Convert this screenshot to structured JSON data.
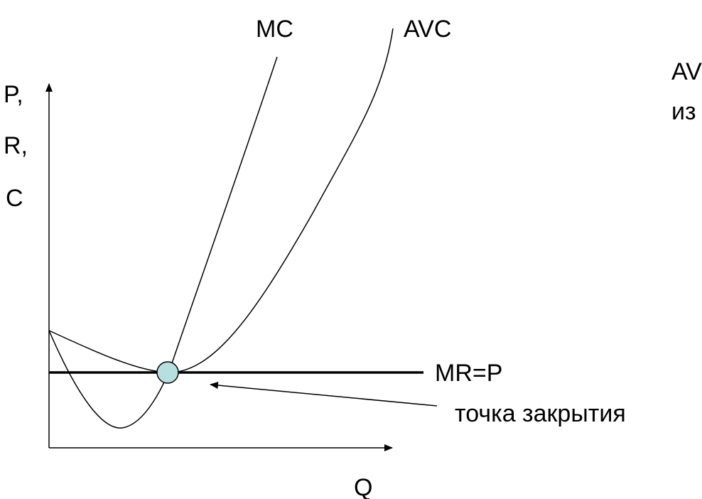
{
  "diagram": {
    "y_axis_label": {
      "line1": "P,",
      "line2": "R,",
      "line3": "C"
    },
    "x_axis_label": "Q",
    "curve_labels": {
      "mc": "MC",
      "avc": "AVC"
    },
    "price_line_label": "MR=P",
    "annotation": "точка закрытия",
    "side_text": {
      "line1": "AV",
      "line2": "из"
    },
    "colors": {
      "lines": "#000000",
      "shutdown_point": "#b8dfe0",
      "background": "#ffffff"
    }
  }
}
